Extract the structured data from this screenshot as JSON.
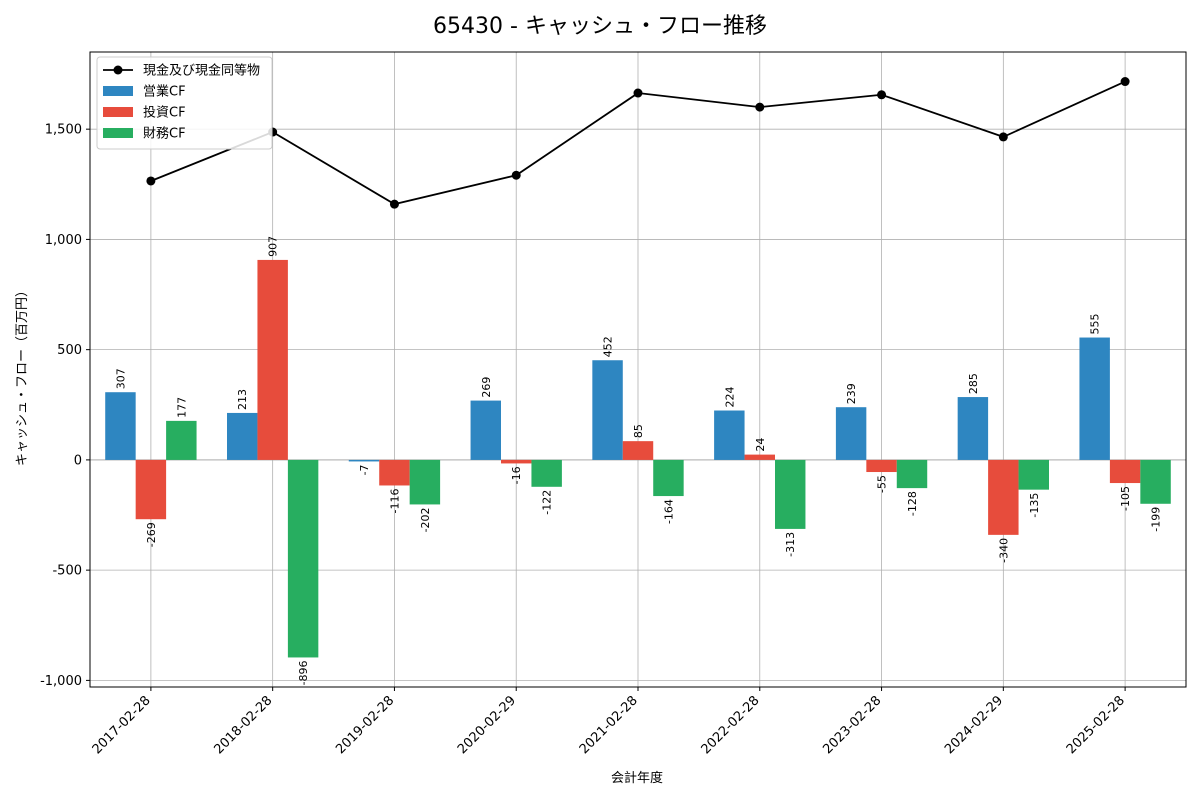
{
  "chart_data": {
    "type": "bar",
    "title": "65430 - キャッシュ・フロー推移",
    "xlabel": "会計年度",
    "ylabel": "キャッシュ・フロー（百万円）",
    "categories": [
      "2017-02-28",
      "2018-02-28",
      "2019-02-28",
      "2020-02-29",
      "2021-02-28",
      "2022-02-28",
      "2023-02-28",
      "2024-02-29",
      "2025-02-28"
    ],
    "ylim": [
      -1030,
      1850
    ],
    "yticks": [
      -1000,
      -500,
      0,
      500,
      1000,
      1500
    ],
    "ytick_labels": [
      "-1,000",
      "-500",
      "0",
      "500",
      "1,000",
      "1,500"
    ],
    "grid": true,
    "legend_position": "top-left",
    "series": [
      {
        "name": "営業CF",
        "type": "bar",
        "color": "#2e86c1",
        "values": [
          307,
          213,
          -7,
          269,
          452,
          224,
          239,
          285,
          555
        ],
        "labels": [
          "307",
          "213",
          "-7",
          "269",
          "452",
          "224",
          "239",
          "285",
          "555"
        ]
      },
      {
        "name": "投資CF",
        "type": "bar",
        "color": "#e74c3c",
        "values": [
          -269,
          907,
          -116,
          -16,
          85,
          24,
          -55,
          -340,
          -105
        ],
        "labels": [
          "-269",
          "907",
          "-116",
          "-16",
          "85",
          "24",
          "-55",
          "-340",
          "-105"
        ]
      },
      {
        "name": "財務CF",
        "type": "bar",
        "color": "#27ae60",
        "values": [
          177,
          -896,
          -202,
          -122,
          -164,
          -313,
          -128,
          -135,
          -199
        ],
        "labels": [
          "177",
          "-896",
          "-202",
          "-122",
          "-164",
          "-313",
          "-128",
          "-135",
          "-199"
        ]
      },
      {
        "name": "現金及び現金同等物",
        "type": "line",
        "color": "#000000",
        "values": [
          1265,
          1487,
          1160,
          1291,
          1664,
          1600,
          1656,
          1465,
          1716
        ]
      }
    ]
  }
}
